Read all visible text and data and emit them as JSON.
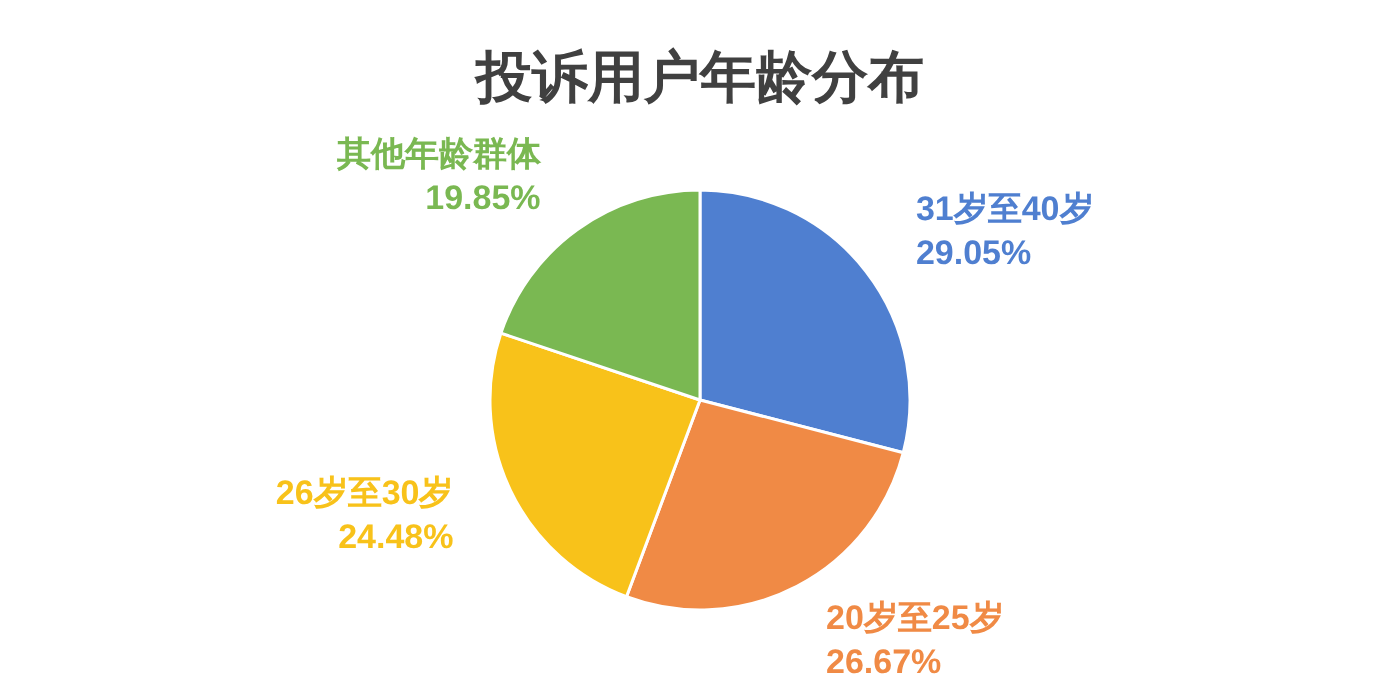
{
  "chart_data": {
    "type": "pie",
    "title": "投诉用户年龄分布",
    "categories": [
      "31岁至40岁",
      "20岁至25岁",
      "26岁至30岁",
      "其他年龄群体"
    ],
    "values": [
      29.05,
      26.67,
      24.48,
      19.85
    ],
    "colors": [
      "#4f7fd0",
      "#f08a45",
      "#f8c21a",
      "#7ab852"
    ],
    "value_labels": [
      "29.05%",
      "26.67%",
      "24.48%",
      "19.85%"
    ]
  }
}
